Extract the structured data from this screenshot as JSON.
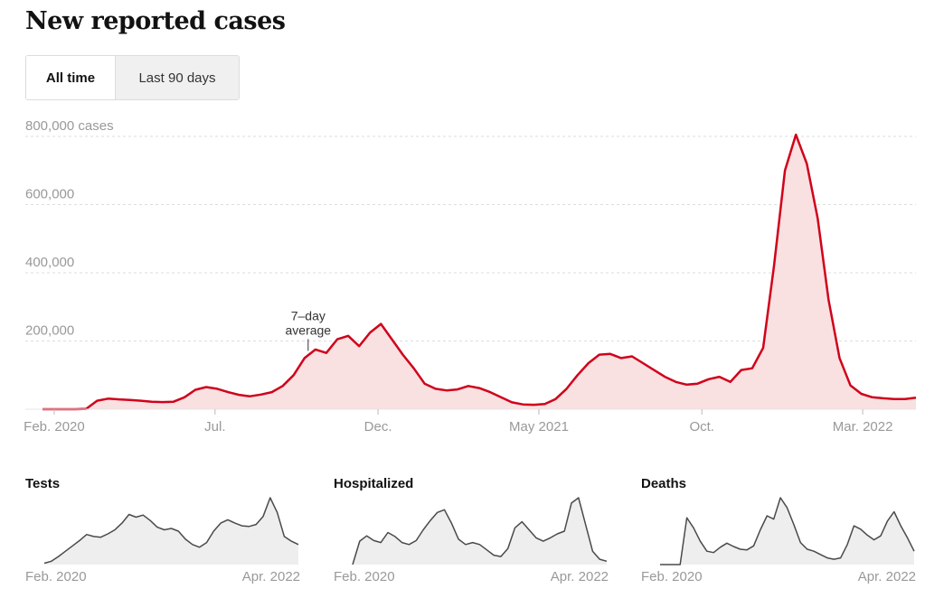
{
  "header": {
    "title": "New reported cases"
  },
  "toggle": {
    "options": [
      {
        "label": "All time",
        "selected": true
      },
      {
        "label": "Last 90 days",
        "selected": false
      }
    ]
  },
  "colors": {
    "main_line": "#d0021b",
    "main_fill": "#f9e0e1",
    "small_line": "#4a4a4a",
    "small_fill": "#eeeeee",
    "gridline": "#dddddd",
    "axis_text": "#999999",
    "tick": "#bbbbbb"
  },
  "chart_data": [
    {
      "id": "cases",
      "type": "area",
      "title": "New reported cases",
      "series_label": "7-day average",
      "annotation": {
        "text_line1": "7–day",
        "text_line2": "average",
        "x_index": 24
      },
      "ylabel": "cases",
      "ylim": [
        0,
        800000
      ],
      "yticks": [
        {
          "value": 800000,
          "label": "800,000 cases"
        },
        {
          "value": 600000,
          "label": "600,000"
        },
        {
          "value": 400000,
          "label": "400,000"
        },
        {
          "value": 200000,
          "label": "200,000"
        }
      ],
      "xlim": [
        "2020-01-21",
        "2022-04-20"
      ],
      "xticks": [
        {
          "date": "2020-02-01",
          "label": "Feb. 2020"
        },
        {
          "date": "2020-07-01",
          "label": "Jul."
        },
        {
          "date": "2020-12-01",
          "label": "Dec."
        },
        {
          "date": "2021-05-01",
          "label": "May 2021"
        },
        {
          "date": "2021-10-01",
          "label": "Oct."
        },
        {
          "date": "2022-03-01",
          "label": "Mar. 2022"
        }
      ],
      "grid": true,
      "x_step": "biweekly",
      "values": [
        0,
        0,
        0,
        0,
        1000,
        25000,
        31000,
        29000,
        27000,
        25000,
        22000,
        21000,
        22000,
        35000,
        57000,
        65000,
        60000,
        50000,
        42000,
        38000,
        43000,
        50000,
        68000,
        100000,
        150000,
        175000,
        165000,
        205000,
        215000,
        185000,
        225000,
        250000,
        205000,
        160000,
        120000,
        75000,
        60000,
        55000,
        58000,
        68000,
        62000,
        50000,
        35000,
        20000,
        14000,
        13000,
        15000,
        30000,
        60000,
        100000,
        135000,
        160000,
        162000,
        150000,
        155000,
        135000,
        115000,
        95000,
        80000,
        72000,
        75000,
        88000,
        95000,
        80000,
        115000,
        120000,
        180000,
        420000,
        700000,
        805000,
        720000,
        560000,
        320000,
        150000,
        70000,
        45000,
        35000,
        32000,
        30000,
        30000,
        34000
      ]
    },
    {
      "id": "tests",
      "type": "area",
      "title": "Tests",
      "xtick_labels": [
        "Feb. 2020",
        "Apr. 2022"
      ],
      "relative_values": [
        0.02,
        0.05,
        0.12,
        0.2,
        0.28,
        0.36,
        0.45,
        0.42,
        0.41,
        0.46,
        0.52,
        0.62,
        0.75,
        0.71,
        0.74,
        0.66,
        0.56,
        0.52,
        0.54,
        0.5,
        0.38,
        0.3,
        0.26,
        0.33,
        0.5,
        0.62,
        0.67,
        0.62,
        0.58,
        0.57,
        0.6,
        0.72,
        1.0,
        0.78,
        0.42,
        0.35,
        0.3
      ]
    },
    {
      "id": "hospitalized",
      "type": "area",
      "title": "Hospitalized",
      "xtick_labels": [
        "Feb. 2020",
        "Apr. 2022"
      ],
      "relative_values": [
        0.0,
        0.35,
        0.43,
        0.36,
        0.33,
        0.48,
        0.42,
        0.33,
        0.3,
        0.36,
        0.52,
        0.66,
        0.78,
        0.82,
        0.62,
        0.38,
        0.3,
        0.33,
        0.3,
        0.22,
        0.14,
        0.12,
        0.24,
        0.55,
        0.64,
        0.52,
        0.4,
        0.35,
        0.4,
        0.46,
        0.5,
        0.92,
        1.0,
        0.6,
        0.2,
        0.08,
        0.05
      ]
    },
    {
      "id": "deaths",
      "type": "area",
      "title": "Deaths",
      "xtick_labels": [
        "Feb. 2020",
        "Apr. 2022"
      ],
      "relative_values": [
        0.0,
        0.0,
        0.0,
        0.0,
        0.7,
        0.55,
        0.35,
        0.2,
        0.18,
        0.26,
        0.32,
        0.27,
        0.23,
        0.22,
        0.28,
        0.52,
        0.73,
        0.68,
        1.0,
        0.85,
        0.6,
        0.33,
        0.23,
        0.2,
        0.15,
        0.1,
        0.08,
        0.1,
        0.3,
        0.58,
        0.53,
        0.44,
        0.37,
        0.43,
        0.65,
        0.79,
        0.58,
        0.4,
        0.2
      ]
    }
  ]
}
